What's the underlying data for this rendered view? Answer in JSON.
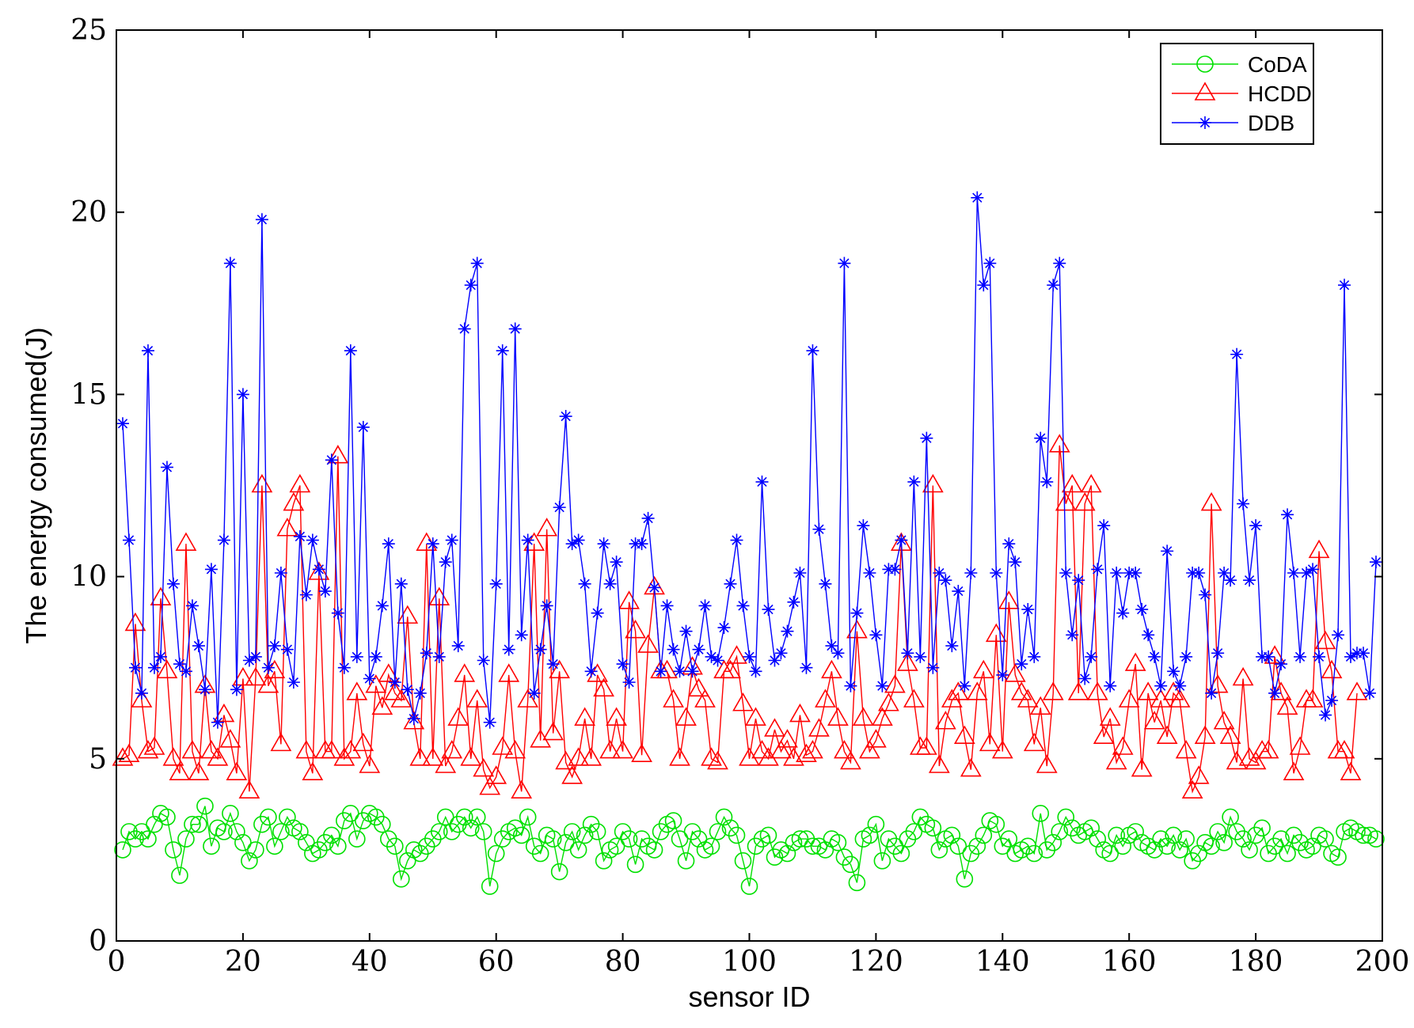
{
  "chart_data": {
    "type": "line",
    "title": "",
    "xlabel": "sensor ID",
    "ylabel": "The energy consumed(J)",
    "xlim": [
      0,
      200
    ],
    "ylim": [
      0,
      25
    ],
    "xticks": [
      0,
      20,
      40,
      60,
      80,
      100,
      120,
      140,
      160,
      180,
      200
    ],
    "yticks": [
      0,
      5,
      10,
      15,
      20,
      25
    ],
    "legend_position": "top-right",
    "series": [
      {
        "name": "CoDA",
        "color": "#00e000",
        "marker": "circle",
        "values": [
          2.5,
          3.0,
          2.8,
          3.0,
          2.8,
          3.2,
          3.5,
          3.4,
          2.5,
          1.8,
          2.8,
          3.2,
          3.2,
          3.7,
          2.6,
          3.1,
          3.0,
          3.5,
          3.0,
          2.7,
          2.2,
          2.5,
          3.2,
          3.4,
          2.6,
          3.0,
          3.4,
          3.1,
          3.0,
          2.7,
          2.4,
          2.5,
          2.7,
          2.9,
          2.6,
          3.3,
          3.5,
          2.8,
          3.3,
          3.5,
          3.4,
          3.2,
          2.8,
          2.6,
          1.7,
          2.2,
          2.5,
          2.4,
          2.6,
          2.8,
          3.0,
          3.4,
          3.0,
          3.2,
          3.4,
          3.1,
          3.4,
          3.0,
          1.5,
          2.4,
          2.8,
          3.0,
          3.1,
          2.9,
          3.4,
          2.6,
          2.4,
          2.9,
          2.8,
          1.9,
          2.7,
          3.0,
          2.5,
          2.9,
          3.2,
          3.0,
          2.2,
          2.5,
          2.6,
          3.0,
          2.8,
          2.1,
          2.8,
          2.6,
          2.5,
          3.0,
          3.2,
          3.3,
          2.8,
          2.2,
          3.0,
          2.8,
          2.5,
          2.6,
          3.0,
          3.4,
          3.1,
          2.9,
          2.2,
          1.5,
          2.6,
          2.8,
          2.9,
          2.3,
          2.5,
          2.4,
          2.7,
          2.8,
          2.8,
          2.6,
          2.6,
          2.5,
          2.8,
          2.7,
          2.3,
          2.1,
          1.6,
          2.8,
          2.9,
          3.2,
          2.2,
          2.8,
          2.6,
          2.4,
          2.8,
          3.0,
          3.4,
          3.2,
          3.1,
          2.5,
          2.8,
          2.9,
          2.6,
          1.7,
          2.4,
          2.6,
          2.9,
          3.3,
          3.2,
          2.6,
          2.8,
          2.4,
          2.5,
          2.6,
          2.4,
          3.5,
          2.5,
          2.7,
          3.0,
          3.4,
          3.1,
          2.9,
          3.0,
          3.1,
          2.8,
          2.5,
          2.4,
          2.9,
          2.6,
          2.9,
          3.0,
          2.7,
          2.6,
          2.5,
          2.8,
          2.6,
          2.9,
          2.5,
          2.8,
          2.2,
          2.4,
          2.7,
          2.6,
          3.0,
          2.7,
          3.4,
          3.0,
          2.8,
          2.5,
          2.9,
          3.1,
          2.4,
          2.6,
          2.8,
          2.4,
          2.9,
          2.7,
          2.5,
          2.6,
          2.9,
          2.8,
          2.4,
          2.3,
          3.0,
          3.1,
          3.0,
          2.9,
          2.9,
          2.8
        ]
      },
      {
        "name": "HCDD",
        "color": "#ff0000",
        "marker": "triangle",
        "values": [
          5.0,
          5.1,
          8.7,
          6.6,
          5.2,
          5.3,
          9.4,
          7.4,
          5.0,
          4.6,
          10.9,
          5.2,
          4.6,
          7.0,
          5.2,
          5.0,
          6.2,
          5.5,
          4.6,
          7.2,
          4.1,
          7.2,
          12.5,
          7.0,
          7.4,
          5.4,
          11.3,
          12.0,
          12.5,
          5.2,
          4.6,
          10.1,
          5.2,
          5.2,
          13.3,
          5.0,
          5.2,
          6.8,
          5.4,
          4.8,
          7.0,
          6.4,
          7.3,
          6.8,
          6.6,
          8.9,
          6.0,
          5.0,
          10.9,
          5.0,
          9.4,
          4.8,
          5.2,
          6.1,
          7.3,
          5.0,
          6.6,
          4.7,
          4.2,
          4.5,
          5.3,
          7.3,
          5.2,
          4.1,
          6.6,
          10.9,
          5.5,
          11.3,
          5.7,
          7.4,
          4.9,
          4.5,
          5.0,
          6.1,
          5.0,
          7.3,
          6.9,
          5.2,
          6.1,
          5.2,
          9.3,
          8.5,
          5.1,
          8.1,
          9.7,
          7.4,
          7.4,
          6.6,
          5.0,
          6.1,
          7.5,
          6.9,
          6.6,
          5.0,
          4.9,
          7.4,
          7.4,
          7.8,
          6.5,
          5.0,
          6.1,
          5.2,
          5.0,
          5.8,
          5.2,
          5.5,
          5.0,
          6.2,
          5.1,
          5.2,
          5.8,
          6.6,
          7.4,
          6.1,
          5.2,
          4.9,
          8.5,
          6.1,
          5.2,
          5.5,
          6.1,
          6.5,
          7.0,
          10.9,
          7.6,
          6.6,
          5.3,
          5.3,
          12.5,
          4.8,
          6.0,
          6.6,
          6.8,
          5.6,
          4.7,
          6.8,
          7.4,
          5.4,
          8.4,
          5.2,
          9.3,
          7.3,
          6.8,
          6.6,
          5.4,
          6.4,
          4.8,
          6.8,
          13.6,
          12.0,
          12.5,
          6.8,
          12.0,
          12.5,
          6.8,
          5.6,
          6.1,
          4.9,
          5.3,
          6.6,
          7.6,
          4.7,
          6.8,
          6.0,
          6.6,
          5.6,
          6.8,
          6.6,
          5.2,
          4.1,
          4.5,
          5.6,
          12.0,
          7.0,
          6.0,
          5.6,
          4.9,
          7.2,
          5.0,
          4.9,
          5.2,
          5.2,
          7.8,
          6.8,
          6.4,
          4.6,
          5.3,
          6.6,
          6.6,
          10.7,
          8.2,
          7.4,
          5.2,
          5.2,
          4.6,
          6.8
        ]
      },
      {
        "name": "DDB",
        "color": "#0000ff",
        "marker": "asterisk",
        "values": [
          14.2,
          11.0,
          7.5,
          6.8,
          16.2,
          7.5,
          7.8,
          13.0,
          9.8,
          7.6,
          7.4,
          9.2,
          8.1,
          6.9,
          10.2,
          6.0,
          11.0,
          18.6,
          6.9,
          15.0,
          7.7,
          7.8,
          19.8,
          7.5,
          8.1,
          10.1,
          8.0,
          7.1,
          11.1,
          9.5,
          11.0,
          10.2,
          9.6,
          13.2,
          9.0,
          7.5,
          16.2,
          7.8,
          14.1,
          7.2,
          7.8,
          9.2,
          10.9,
          7.1,
          9.8,
          6.9,
          6.1,
          6.8,
          7.9,
          10.9,
          7.8,
          10.4,
          11.0,
          8.1,
          16.8,
          18.0,
          18.6,
          7.7,
          6.0,
          9.8,
          16.2,
          8.0,
          16.8,
          8.4,
          11.0,
          6.8,
          8.0,
          9.2,
          7.6,
          11.9,
          14.4,
          10.9,
          11.0,
          9.8,
          7.4,
          9.0,
          10.9,
          9.8,
          10.4,
          7.6,
          7.1,
          10.9,
          10.9,
          11.6,
          9.7,
          7.4,
          9.2,
          8.0,
          7.4,
          8.5,
          7.4,
          8.0,
          9.2,
          7.8,
          7.7,
          8.6,
          9.8,
          11.0,
          9.2,
          7.8,
          7.4,
          12.6,
          9.1,
          7.7,
          7.9,
          8.5,
          9.3,
          10.1,
          7.5,
          16.2,
          11.3,
          9.8,
          8.1,
          7.9,
          18.6,
          7.0,
          9.0,
          11.4,
          10.1,
          8.4,
          7.0,
          10.2,
          10.2,
          11.0,
          7.9,
          12.6,
          7.8,
          13.8,
          7.5,
          10.1,
          9.9,
          8.1,
          9.6,
          7.0,
          10.1,
          20.4,
          18.0,
          18.6,
          10.1,
          7.3,
          10.9,
          10.4,
          7.6,
          9.1,
          7.8,
          13.8,
          12.6,
          18.0,
          18.6,
          10.1,
          8.4,
          9.9,
          7.2,
          7.8,
          10.2,
          11.4,
          7.0,
          10.1,
          9.0,
          10.1,
          10.1,
          9.1,
          8.4,
          7.8,
          7.0,
          10.7,
          7.4,
          7.0,
          7.8,
          10.1,
          10.1,
          9.5,
          6.8,
          7.9,
          10.1,
          9.9,
          16.1,
          12.0,
          9.9,
          11.4,
          7.8,
          7.8,
          6.8,
          7.6,
          11.7,
          10.1,
          7.8,
          10.1,
          10.2,
          7.8,
          6.2,
          6.6,
          8.4,
          18.0,
          7.8,
          7.9,
          7.9,
          6.8,
          10.4
        ]
      }
    ]
  }
}
